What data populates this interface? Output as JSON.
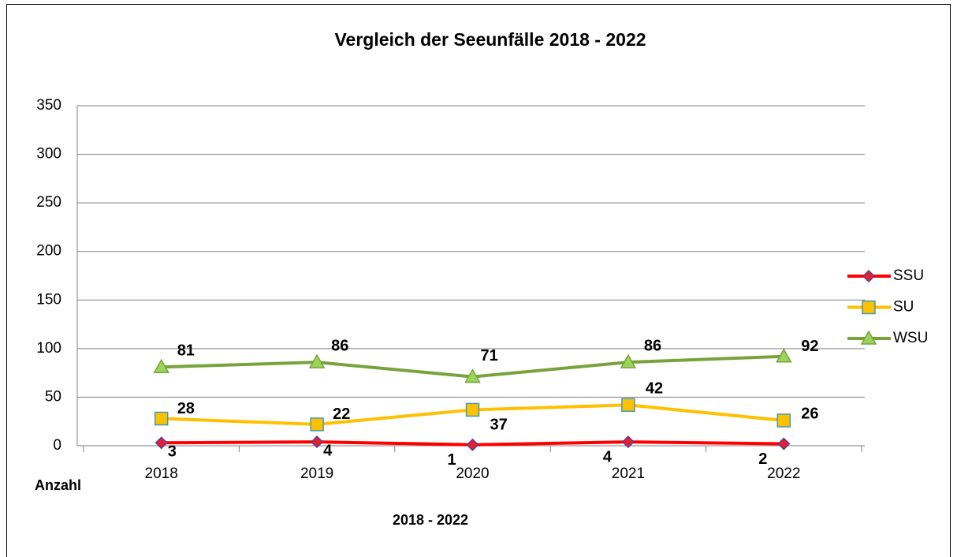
{
  "chart_data": {
    "type": "line",
    "title": "Vergleich der Seeunfälle 2018 - 2022",
    "y_label": "Anzahl",
    "x_label": "2018 - 2022",
    "categories": [
      "2018",
      "2019",
      "2020",
      "2021",
      "2022"
    ],
    "series": [
      {
        "name": "SSU",
        "color": "#ff0000",
        "marker": "diamond",
        "marker_color": "#e8202a",
        "marker_edge": "#5b3a9a",
        "values": [
          3,
          4,
          1,
          4,
          2
        ]
      },
      {
        "name": "SU",
        "color": "#ffc000",
        "marker": "square",
        "marker_color": "#ffc000",
        "marker_edge": "#3e9cb8",
        "values": [
          28,
          22,
          37,
          42,
          26
        ]
      },
      {
        "name": "WSU",
        "color": "#77a33a",
        "marker": "triangle",
        "marker_color": "#9bd45a",
        "marker_edge": "#77a33a",
        "values": [
          81,
          86,
          71,
          86,
          92
        ]
      }
    ],
    "ylim": [
      0,
      350
    ],
    "yticks": [
      0,
      50,
      100,
      150,
      200,
      250,
      300,
      350
    ],
    "grid": true,
    "legend": "right"
  }
}
